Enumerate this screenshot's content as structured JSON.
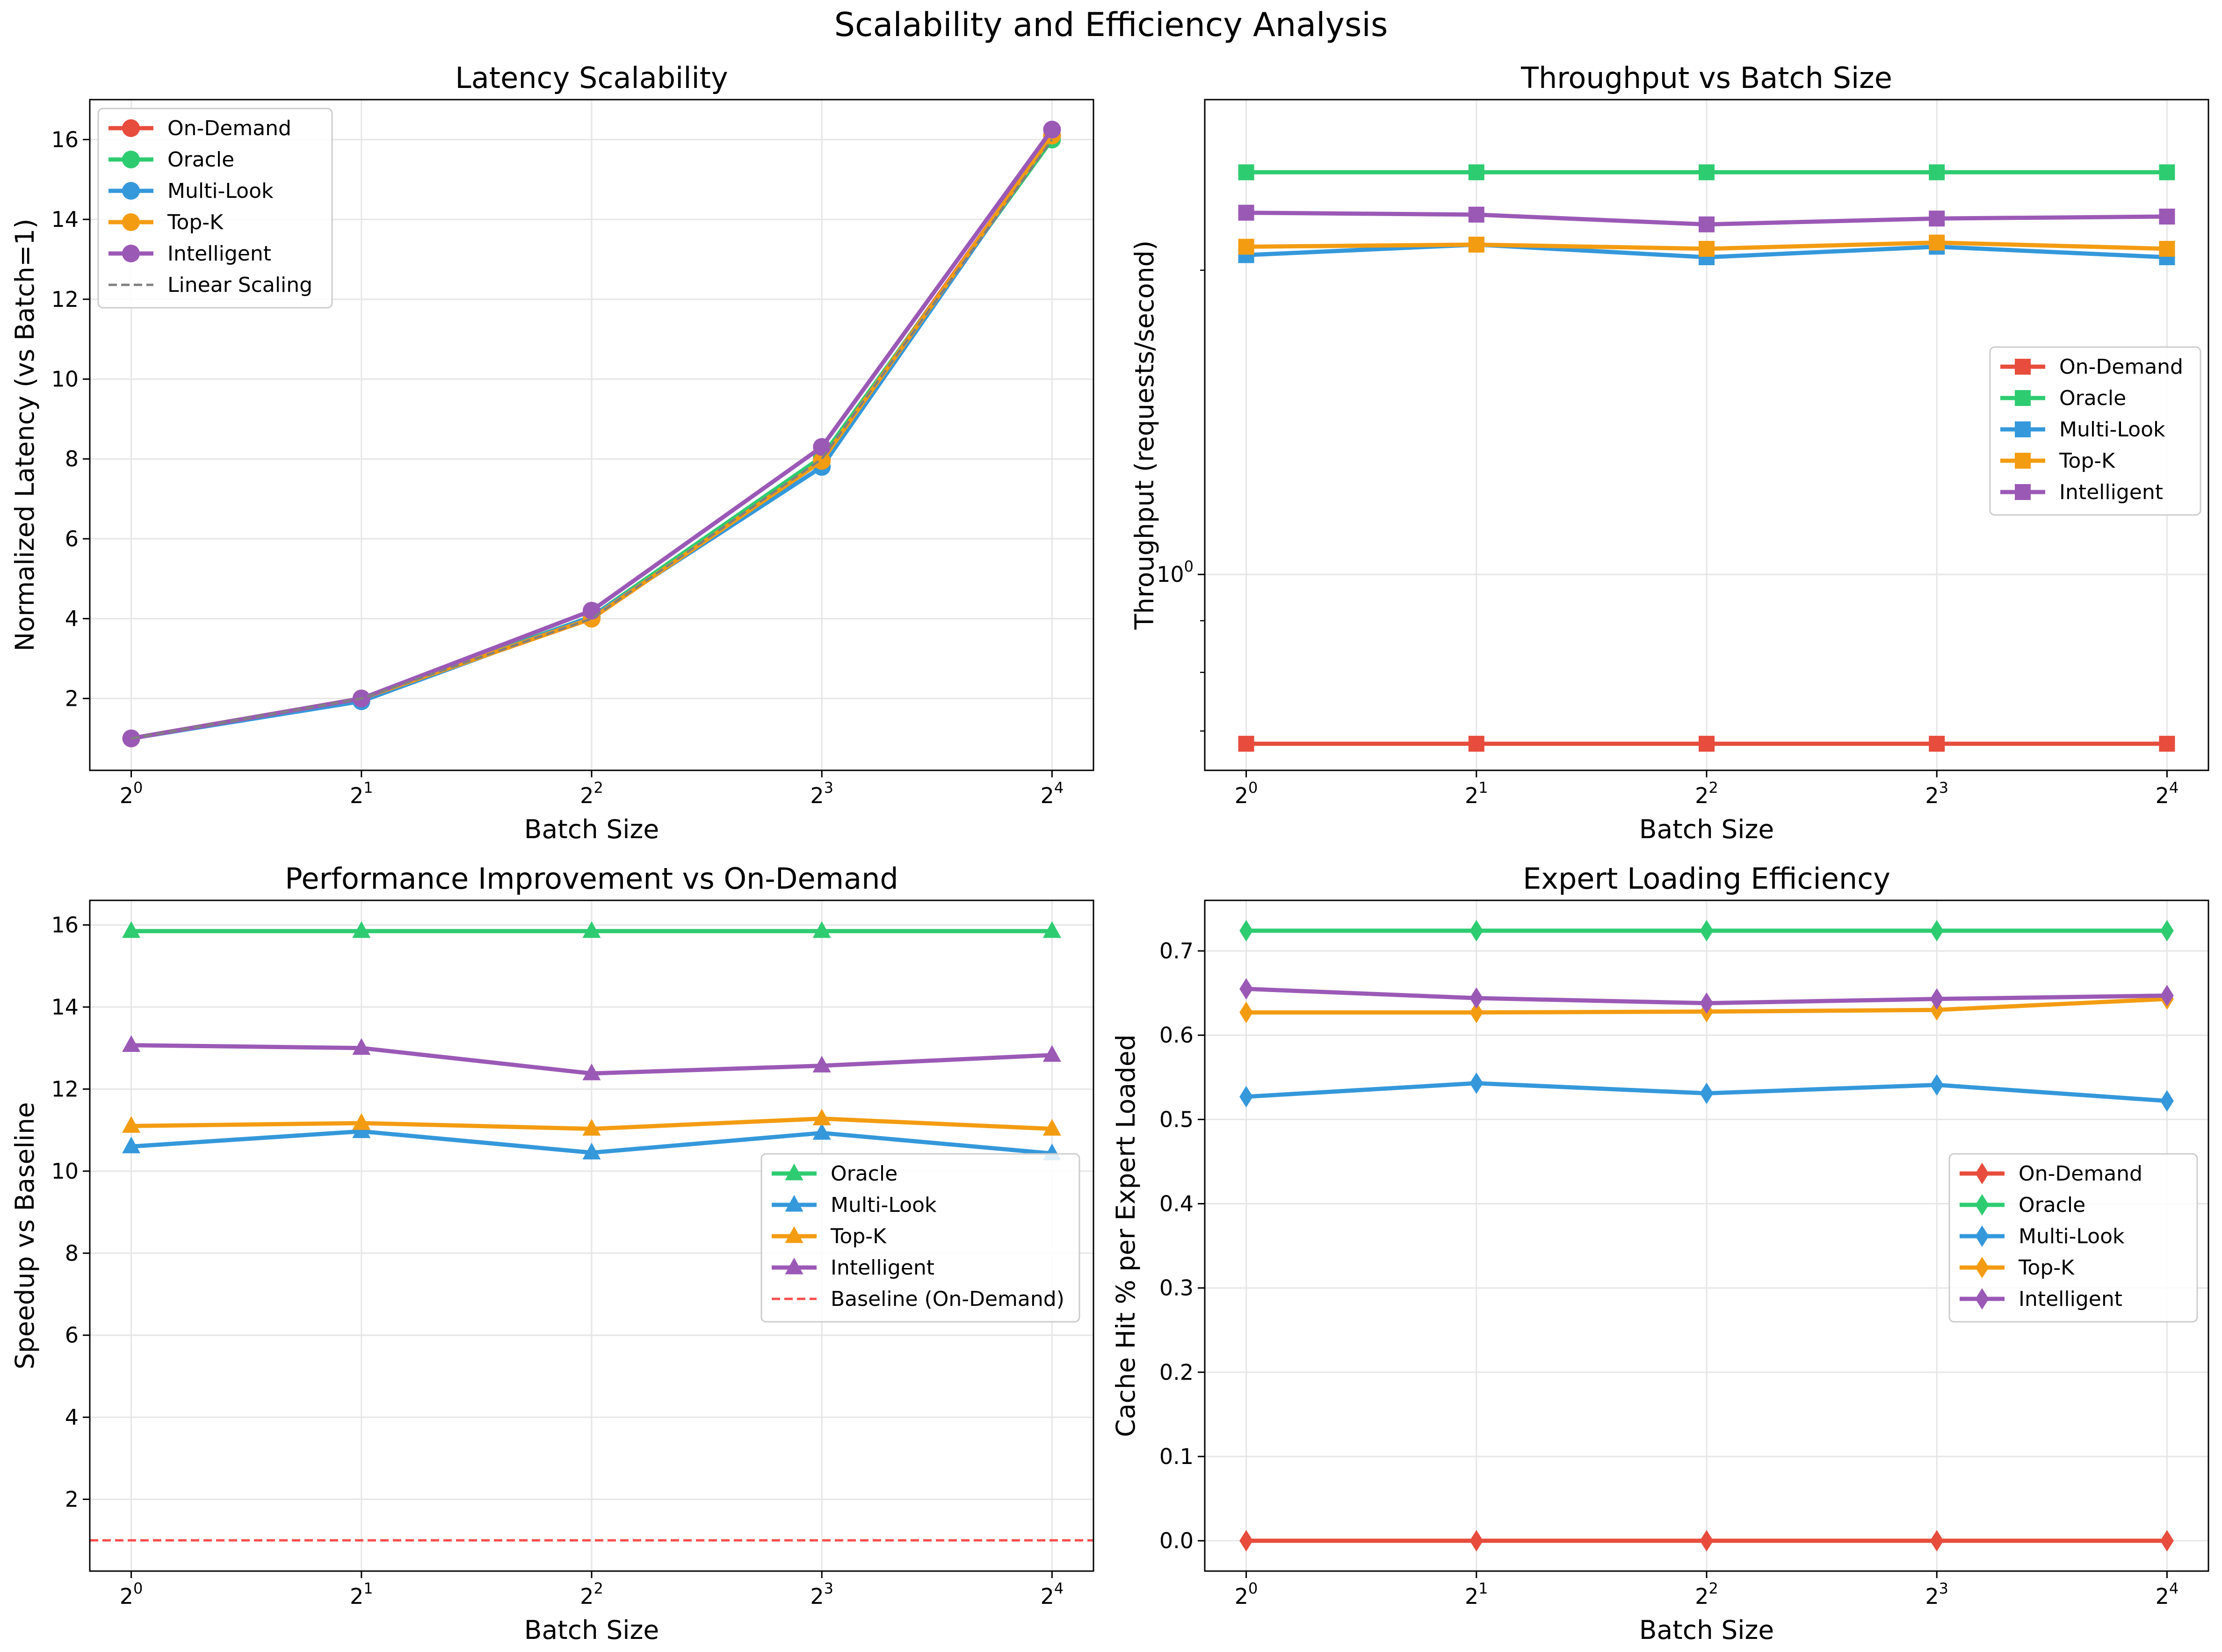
{
  "figure": {
    "title": "Scalability and Efficiency Analysis"
  },
  "colors": {
    "On-Demand": "#e74c3c",
    "Oracle": "#2ecc71",
    "Multi-Look": "#3498db",
    "Top-K": "#f39c12",
    "Intelligent": "#9b59b6",
    "Linear Scaling": "#808080",
    "Baseline (On-Demand)": "#ff4d4d"
  },
  "chart_data": [
    {
      "type": "line",
      "title": "Latency Scalability",
      "xlabel": "Batch Size",
      "ylabel": "Normalized Latency (vs Batch=1)",
      "x": [
        1,
        2,
        4,
        8,
        16
      ],
      "xscale": "log2",
      "ylim": [
        0.2,
        17.0
      ],
      "yticks": [
        2,
        4,
        6,
        8,
        10,
        12,
        14,
        16
      ],
      "marker": "circle",
      "grid": true,
      "legend": "upper-left",
      "series": [
        {
          "name": "On-Demand",
          "values": [
            1.0,
            2.0,
            4.0,
            8.0,
            16.1
          ]
        },
        {
          "name": "Oracle",
          "values": [
            1.0,
            2.0,
            4.05,
            8.05,
            16.0
          ]
        },
        {
          "name": "Multi-Look",
          "values": [
            1.0,
            1.93,
            4.05,
            7.8,
            16.1
          ]
        },
        {
          "name": "Top-K",
          "values": [
            1.0,
            2.0,
            4.0,
            7.95,
            16.1
          ]
        },
        {
          "name": "Intelligent",
          "values": [
            1.0,
            2.0,
            4.2,
            8.3,
            16.25
          ]
        },
        {
          "name": "Linear Scaling",
          "values": [
            1,
            2,
            4,
            8,
            16
          ],
          "style": "dashed"
        }
      ]
    },
    {
      "type": "line",
      "title": "Throughput vs Batch Size",
      "xlabel": "Batch Size",
      "ylabel": "Throughput (requests/second)",
      "x": [
        1,
        2,
        4,
        8,
        16
      ],
      "xscale": "log2",
      "yscale": "log",
      "ylim": [
        0.64,
        2.95
      ],
      "yticks": [
        1
      ],
      "marker": "square",
      "grid": true,
      "legend": "center-right",
      "series": [
        {
          "name": "On-Demand",
          "values": [
            0.68,
            0.68,
            0.68,
            0.68,
            0.68
          ]
        },
        {
          "name": "Oracle",
          "values": [
            2.5,
            2.5,
            2.5,
            2.5,
            2.5
          ]
        },
        {
          "name": "Multi-Look",
          "values": [
            2.07,
            2.12,
            2.06,
            2.11,
            2.06
          ]
        },
        {
          "name": "Top-K",
          "values": [
            2.11,
            2.12,
            2.1,
            2.13,
            2.1
          ]
        },
        {
          "name": "Intelligent",
          "values": [
            2.28,
            2.27,
            2.22,
            2.25,
            2.26
          ]
        }
      ]
    },
    {
      "type": "line",
      "title": "Performance Improvement vs On-Demand",
      "xlabel": "Batch Size",
      "ylabel": "Speedup vs Baseline",
      "x": [
        1,
        2,
        4,
        8,
        16
      ],
      "xscale": "log2",
      "ylim": [
        0.25,
        16.6
      ],
      "yticks": [
        2,
        4,
        6,
        8,
        10,
        12,
        14,
        16
      ],
      "marker": "triangle",
      "grid": true,
      "legend": "center-right",
      "baseline": 1.0,
      "series": [
        {
          "name": "Oracle",
          "values": [
            15.85,
            15.85,
            15.85,
            15.85,
            15.85
          ]
        },
        {
          "name": "Multi-Look",
          "values": [
            10.6,
            10.97,
            10.45,
            10.93,
            10.43
          ]
        },
        {
          "name": "Top-K",
          "values": [
            11.1,
            11.17,
            11.03,
            11.28,
            11.03
          ]
        },
        {
          "name": "Intelligent",
          "values": [
            13.07,
            13.0,
            12.38,
            12.57,
            12.83
          ]
        },
        {
          "name": "Baseline (On-Demand)",
          "values": [
            1.0,
            1.0,
            1.0,
            1.0,
            1.0
          ],
          "style": "dashed"
        }
      ]
    },
    {
      "type": "line",
      "title": "Expert Loading Efficiency",
      "xlabel": "Batch Size",
      "ylabel": "Cache Hit % per Expert Loaded",
      "x": [
        1,
        2,
        4,
        8,
        16
      ],
      "xscale": "log2",
      "ylim": [
        -0.036,
        0.76
      ],
      "yticks": [
        0.0,
        0.1,
        0.2,
        0.3,
        0.4,
        0.5,
        0.6,
        0.7
      ],
      "marker": "diamond",
      "grid": true,
      "legend": "center-right",
      "series": [
        {
          "name": "On-Demand",
          "values": [
            0.0,
            0.0,
            0.0,
            0.0,
            0.0
          ]
        },
        {
          "name": "Oracle",
          "values": [
            0.724,
            0.724,
            0.724,
            0.724,
            0.724
          ]
        },
        {
          "name": "Multi-Look",
          "values": [
            0.527,
            0.543,
            0.531,
            0.541,
            0.522
          ]
        },
        {
          "name": "Top-K",
          "values": [
            0.627,
            0.627,
            0.628,
            0.63,
            0.643
          ]
        },
        {
          "name": "Intelligent",
          "values": [
            0.655,
            0.644,
            0.638,
            0.643,
            0.647
          ]
        }
      ]
    }
  ]
}
